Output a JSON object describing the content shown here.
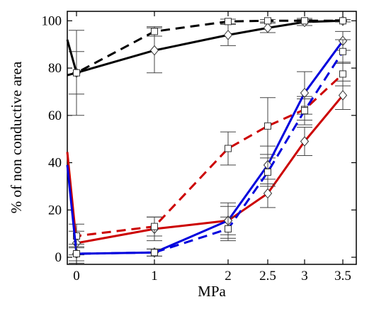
{
  "chart_data": {
    "type": "line",
    "xlabel": "MPa",
    "ylabel": "% of non conductive area",
    "x_categories": [
      "0",
      "1",
      "2",
      "2.5",
      "3",
      "3.5"
    ],
    "ylim": [
      -3,
      104
    ],
    "y_ticks": [
      0,
      20,
      40,
      60,
      80,
      100
    ],
    "grid": false,
    "legend": "none",
    "series": [
      {
        "color": "#000000",
        "dash": false,
        "marker": "diamond",
        "x_start": -0.1,
        "y_start": 92,
        "x": [
          0,
          1,
          2,
          2.5,
          3,
          3.5
        ],
        "y": [
          78,
          87.5,
          94,
          97,
          99.5,
          100
        ],
        "err": [
          9,
          9.5,
          4.5,
          2,
          1.5,
          0.5
        ]
      },
      {
        "color": "#000000",
        "dash": true,
        "marker": "square",
        "x_start": -0.1,
        "y_start": 77,
        "x": [
          0,
          1,
          2,
          2.5,
          3,
          3.5
        ],
        "y": [
          78,
          95.5,
          99.7,
          100,
          100,
          100
        ],
        "err": [
          18,
          2,
          1,
          0.5,
          0.5,
          0.5
        ]
      },
      {
        "color": "#cc0000",
        "dash": false,
        "marker": "diamond",
        "x_start": -0.1,
        "y_start": 44.5,
        "x": [
          0,
          1,
          2,
          2.5,
          3,
          3.5
        ],
        "y": [
          6,
          12,
          15.5,
          27,
          49,
          68.5
        ],
        "err": [
          5,
          5,
          7.5,
          6,
          6,
          6
        ]
      },
      {
        "color": "#cc0000",
        "dash": true,
        "marker": "square",
        "x_start": 0.04,
        "y_start": 9,
        "x": [
          0,
          1,
          2,
          2.5,
          3,
          3.5
        ],
        "y": [
          9,
          13,
          46,
          55.5,
          62.5,
          77.5
        ],
        "err": [
          5,
          4,
          7,
          12,
          4.5,
          5
        ]
      },
      {
        "color": "#0000dd",
        "dash": false,
        "marker": "diamond",
        "x_start": -0.1,
        "y_start": 39,
        "x": [
          0,
          1,
          2,
          2.5,
          3,
          3.5
        ],
        "y": [
          1.5,
          2,
          15.5,
          39,
          69.5,
          91.5
        ],
        "err": [
          4,
          1.5,
          6,
          8,
          9,
          4
        ]
      },
      {
        "color": "#0000dd",
        "dash": true,
        "marker": "square",
        "x_start": 0.1,
        "y_start": 1.5,
        "x": [
          0,
          1,
          2,
          2.5,
          3,
          3.5
        ],
        "y": [
          1.5,
          2,
          12,
          36,
          62,
          87
        ],
        "err": [
          3,
          1.5,
          5,
          6,
          6,
          5
        ]
      }
    ]
  }
}
